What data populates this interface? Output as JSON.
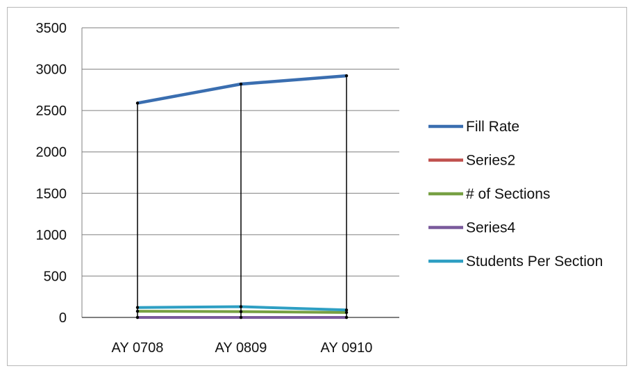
{
  "chart_data": {
    "type": "line",
    "title": "",
    "xlabel": "",
    "ylabel": "",
    "categories": [
      "AY 0708",
      "AY 0809",
      "AY 0910"
    ],
    "ylim": [
      0,
      3500
    ],
    "yticks": [
      0,
      500,
      1000,
      1500,
      2000,
      2500,
      3000,
      3500
    ],
    "grid": true,
    "legend_position": "right",
    "series": [
      {
        "name": "Fill Rate",
        "color": "#3a6eb0",
        "values": [
          2590,
          2820,
          2920
        ]
      },
      {
        "name": "Series2",
        "color": "#c0504d",
        "values": [
          0,
          0,
          0
        ]
      },
      {
        "name": "# of Sections",
        "color": "#77a043",
        "values": [
          75,
          70,
          60
        ]
      },
      {
        "name": "Series4",
        "color": "#7a5a9c",
        "values": [
          0,
          0,
          0
        ]
      },
      {
        "name": "Students Per Section",
        "color": "#2e9fc3",
        "values": [
          120,
          130,
          90
        ]
      }
    ]
  }
}
